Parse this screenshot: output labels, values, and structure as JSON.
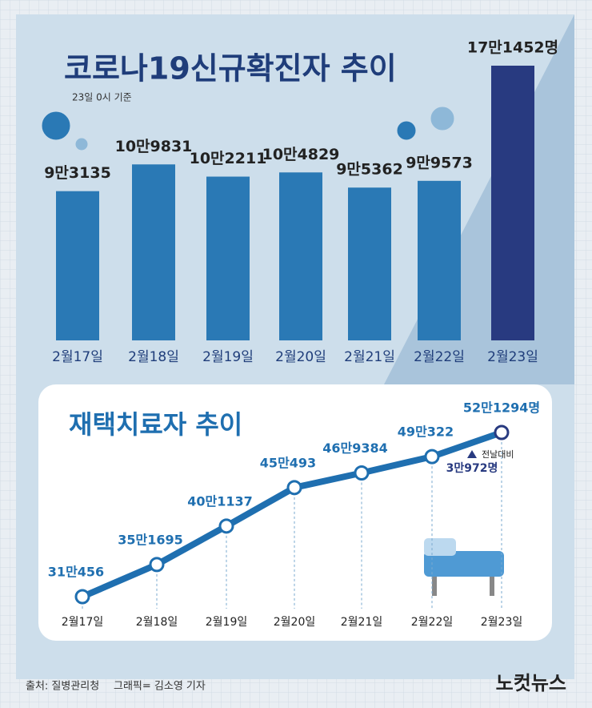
{
  "chart_data": [
    {
      "type": "bar",
      "title": "코로나19신규확진자 추이",
      "subtitle": "23일 0시 기준",
      "categories": [
        "2월17일",
        "2월18일",
        "2월19일",
        "2월20일",
        "2월21일",
        "2월22일",
        "2월23일"
      ],
      "values": [
        93135,
        109831,
        102211,
        104829,
        95362,
        99573,
        171452
      ],
      "value_labels": [
        "9만3135",
        "10만9831",
        "10만2211",
        "10만4829",
        "9만5362",
        "9만9573",
        "17만1452명"
      ],
      "colors": [
        "#2a79b5",
        "#2a79b5",
        "#2a79b5",
        "#2a79b5",
        "#2a79b5",
        "#2a79b5",
        "#283a80"
      ]
    },
    {
      "type": "line",
      "title": "재택치료자 추이",
      "categories": [
        "2월17일",
        "2월18일",
        "2월19일",
        "2월20일",
        "2월21일",
        "2월22일",
        "2월23일"
      ],
      "values": [
        310456,
        351695,
        401137,
        450493,
        469384,
        490322,
        521294
      ],
      "value_labels": [
        "31만456",
        "35만1695",
        "40만1137",
        "45만493",
        "46만9384",
        "49만322",
        "52만1294명"
      ],
      "color": "#1f6fb0",
      "annotation": {
        "label": "전날대비",
        "value_text": "3만972명"
      }
    }
  ],
  "footer": {
    "source": "출처: 질병관리청",
    "credit": "그래픽= 김소영 기자",
    "logo": "노컷뉴스"
  }
}
